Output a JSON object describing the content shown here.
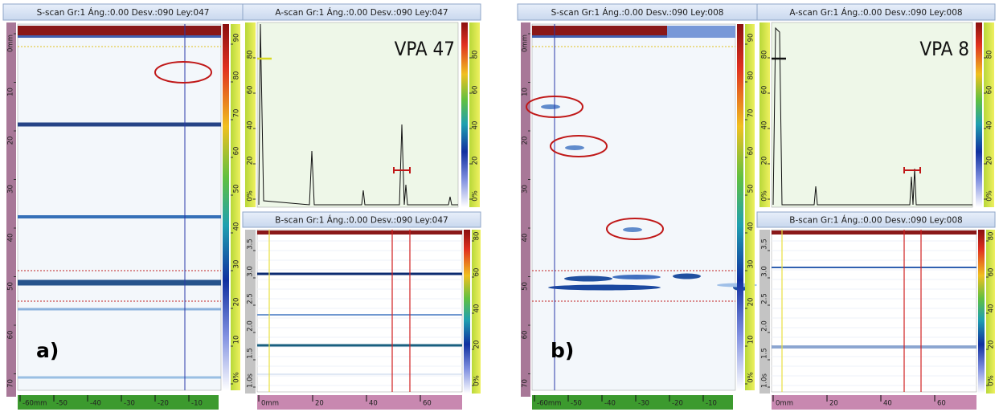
{
  "panels": [
    {
      "label": "a)",
      "sscan": {
        "title": "S-scan Gr:1 Áng.:0.00 Desv.:090 Ley:047",
        "depth_ticks": [
          "0mm",
          "10",
          "20",
          "30",
          "40",
          "50",
          "60",
          "70"
        ],
        "index_ticks": [
          "-60mm",
          "-50",
          "-40",
          "-30",
          "-20",
          "-10"
        ],
        "scale_ticks": [
          "0%",
          "10",
          "20",
          "30",
          "40",
          "50",
          "60",
          "70",
          "80",
          "90"
        ]
      },
      "ascan": {
        "title": "A-scan Gr:1 Áng.:0.00 Desv.:090 Ley:047",
        "annotation": "VPA 47",
        "left_ticks": [
          "0%",
          "20",
          "40",
          "60",
          "80"
        ],
        "scale_ticks": [
          "0%",
          "20",
          "40",
          "60",
          "80"
        ]
      },
      "bscan": {
        "title": "B-scan Gr:1 Áng.:0.00 Desv.:090 Ley:047",
        "time_ticks": [
          "1.0s",
          "1.5",
          "2.0",
          "2.5",
          "3.0",
          "3.5"
        ],
        "index_ticks": [
          "0mm",
          "20",
          "40",
          "60"
        ],
        "scale_ticks": [
          "0%",
          "20",
          "40",
          "60",
          "80"
        ]
      }
    },
    {
      "label": "b)",
      "sscan": {
        "title": "S-scan Gr:1 Áng.:0.00 Desv.:090 Ley:008",
        "depth_ticks": [
          "0mm",
          "10",
          "20",
          "30",
          "40",
          "50",
          "60",
          "70"
        ],
        "index_ticks": [
          "-60mm",
          "-50",
          "-40",
          "-30",
          "-20",
          "-10"
        ],
        "scale_ticks": [
          "0%",
          "10",
          "20",
          "30",
          "40",
          "50",
          "60",
          "70",
          "80",
          "90"
        ]
      },
      "ascan": {
        "title": "A-scan Gr:1 Áng.:0.00 Desv.:090 Ley:008",
        "annotation": "VPA 8",
        "left_ticks": [
          "0%",
          "20",
          "40",
          "60",
          "80"
        ],
        "scale_ticks": [
          "0%",
          "20",
          "40",
          "60",
          "80"
        ]
      },
      "bscan": {
        "title": "B-scan Gr:1 Áng.:0.00 Desv.:090 Ley:008",
        "time_ticks": [
          "1.0s",
          "1.5",
          "2.0",
          "2.5",
          "3.0",
          "3.5"
        ],
        "index_ticks": [
          "0mm",
          "20",
          "40",
          "60"
        ],
        "scale_ticks": [
          "0%",
          "20",
          "40",
          "60",
          "80"
        ]
      }
    }
  ]
}
